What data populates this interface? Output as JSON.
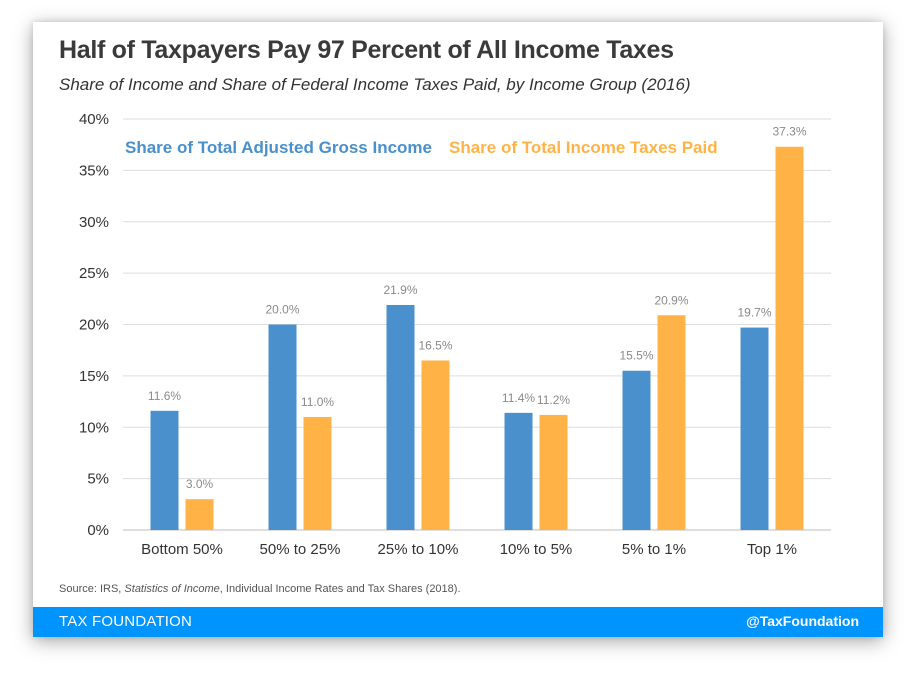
{
  "title": "Half of Taxpayers Pay 97 Percent of All Income Taxes",
  "subtitle": "Share of Income and Share of Federal Income Taxes Paid, by Income Group (2016)",
  "source": {
    "prefix": "Source: IRS, ",
    "italic": "Statistics of Income",
    "suffix": ", Individual Income Rates and Tax Shares (2018)."
  },
  "footer": {
    "brand": "TAX FOUNDATION",
    "handle": "@TaxFoundation"
  },
  "colors": {
    "agi": "#4a90cc",
    "taxes": "#ffb347",
    "footer": "#0094ff"
  },
  "chart_data": {
    "type": "bar",
    "title": "Half of Taxpayers Pay 97 Percent of All Income Taxes",
    "xlabel": "",
    "ylabel": "",
    "ylim": [
      0,
      40
    ],
    "yticks": [
      "0%",
      "5%",
      "10%",
      "15%",
      "20%",
      "25%",
      "30%",
      "35%",
      "40%"
    ],
    "categories": [
      "Bottom 50%",
      "50% to 25%",
      "25% to 10%",
      "10% to 5%",
      "5% to 1%",
      "Top 1%"
    ],
    "series": [
      {
        "name": "Share of Total Adjusted Gross Income",
        "values": [
          11.6,
          20.0,
          21.9,
          11.4,
          15.5,
          19.7
        ],
        "labels": [
          "11.6%",
          "20.0%",
          "21.9%",
          "11.4%",
          "15.5%",
          "19.7%"
        ]
      },
      {
        "name": "Share of Total Income Taxes Paid",
        "values": [
          3.0,
          11.0,
          16.5,
          11.2,
          20.9,
          37.3
        ],
        "labels": [
          "3.0%",
          "11.0%",
          "16.5%",
          "11.2%",
          "20.9%",
          "37.3%"
        ]
      }
    ],
    "grid": true,
    "legend": "top-left"
  }
}
